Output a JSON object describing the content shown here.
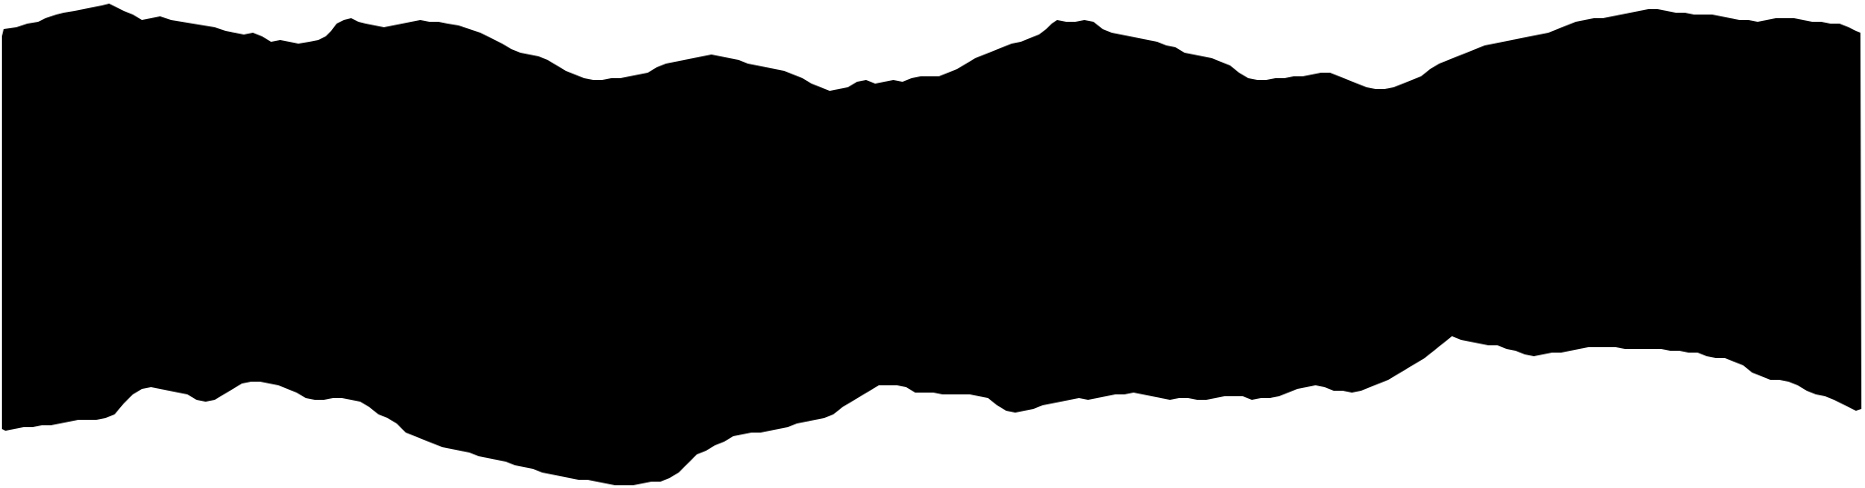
{
  "canvas": {
    "background_color": "#ffffff"
  },
  "shape": {
    "name": "torn-paper-strip",
    "fill_color": "#000000"
  }
}
